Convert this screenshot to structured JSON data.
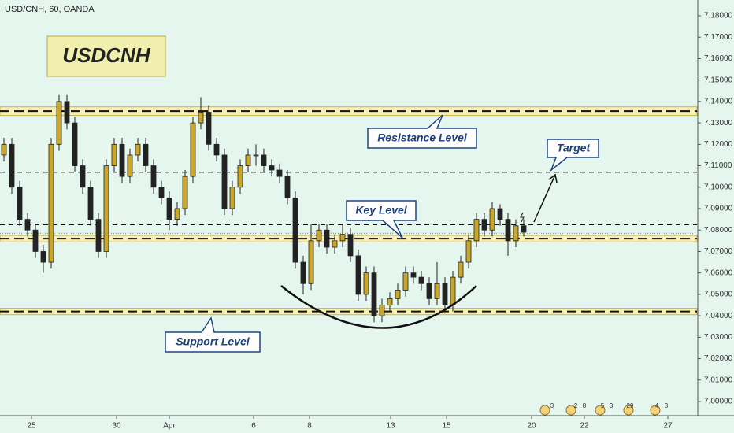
{
  "chart_data": {
    "type": "candlestick",
    "header": "USD/CNH, 60, OANDA",
    "title": "USDCNH",
    "annotations": {
      "resistance": "Resistance Level",
      "target": "Target",
      "key": "Key Level",
      "support": "Support Level"
    },
    "up_color": "#c9a72c",
    "down_color": "#222222",
    "band_color": "#f6f0b8",
    "grid": false,
    "ylim": [
      7.0,
      7.18
    ],
    "yticks": [
      {
        "value": 7.18,
        "label": "7.18000"
      },
      {
        "value": 7.17,
        "label": "7.17000"
      },
      {
        "value": 7.16,
        "label": "7.16000"
      },
      {
        "value": 7.15,
        "label": "7.15000"
      },
      {
        "value": 7.14,
        "label": "7.14000"
      },
      {
        "value": 7.13,
        "label": "7.13000"
      },
      {
        "value": 7.12,
        "label": "7.12000"
      },
      {
        "value": 7.11,
        "label": "7.11000"
      },
      {
        "value": 7.1,
        "label": "7.10000"
      },
      {
        "value": 7.09,
        "label": "7.09000"
      },
      {
        "value": 7.08,
        "label": "7.08000"
      },
      {
        "value": 7.07,
        "label": "7.07000"
      },
      {
        "value": 7.06,
        "label": "7.06000"
      },
      {
        "value": 7.05,
        "label": "7.05000"
      },
      {
        "value": 7.04,
        "label": "7.04000"
      },
      {
        "value": 7.03,
        "label": "7.03000"
      },
      {
        "value": 7.02,
        "label": "7.02000"
      },
      {
        "value": 7.01,
        "label": "7.01000"
      },
      {
        "value": 7.0,
        "label": "7.00000"
      }
    ],
    "xlim": [
      0,
      88.5
    ],
    "xticks": [
      {
        "value": 4.0,
        "label": "25"
      },
      {
        "value": 14.8,
        "label": "30"
      },
      {
        "value": 21.5,
        "label": "Apr"
      },
      {
        "value": 32.2,
        "label": "6"
      },
      {
        "value": 39.3,
        "label": "8"
      },
      {
        "value": 49.6,
        "label": "13"
      },
      {
        "value": 56.7,
        "label": "15"
      },
      {
        "value": 67.5,
        "label": "20"
      },
      {
        "value": 74.2,
        "label": "22"
      },
      {
        "value": 84.8,
        "label": "27"
      }
    ],
    "bands": [
      [
        7.1335,
        7.1375
      ],
      [
        7.0745,
        7.0775
      ],
      [
        7.0405,
        7.0435
      ]
    ],
    "dashed_lines": [
      7.1355,
      7.107,
      7.0825,
      7.076,
      7.042
    ],
    "dotted_line": 7.0785,
    "event_labels": [
      "3",
      "2",
      "8",
      "5",
      "3",
      "29",
      "4",
      "3"
    ],
    "candles": [
      [
        7.115,
        7.123,
        7.112,
        7.12
      ],
      [
        7.12,
        7.123,
        7.097,
        7.1
      ],
      [
        7.1,
        7.103,
        7.082,
        7.085
      ],
      [
        7.085,
        7.088,
        7.077,
        7.08
      ],
      [
        7.08,
        7.083,
        7.067,
        7.07
      ],
      [
        7.07,
        7.073,
        7.06,
        7.065
      ],
      [
        7.065,
        7.123,
        7.062,
        7.12
      ],
      [
        7.12,
        7.143,
        7.117,
        7.14
      ],
      [
        7.14,
        7.143,
        7.127,
        7.13
      ],
      [
        7.13,
        7.133,
        7.107,
        7.11
      ],
      [
        7.11,
        7.113,
        7.097,
        7.1
      ],
      [
        7.1,
        7.103,
        7.082,
        7.085
      ],
      [
        7.085,
        7.088,
        7.067,
        7.07
      ],
      [
        7.07,
        7.113,
        7.067,
        7.11
      ],
      [
        7.11,
        7.123,
        7.107,
        7.12
      ],
      [
        7.12,
        7.123,
        7.102,
        7.105
      ],
      [
        7.105,
        7.118,
        7.102,
        7.115
      ],
      [
        7.115,
        7.123,
        7.112,
        7.12
      ],
      [
        7.12,
        7.123,
        7.107,
        7.11
      ],
      [
        7.11,
        7.113,
        7.097,
        7.1
      ],
      [
        7.1,
        7.103,
        7.092,
        7.095
      ],
      [
        7.095,
        7.098,
        7.08,
        7.085
      ],
      [
        7.085,
        7.093,
        7.082,
        7.09
      ],
      [
        7.09,
        7.108,
        7.087,
        7.105
      ],
      [
        7.105,
        7.133,
        7.102,
        7.13
      ],
      [
        7.13,
        7.142,
        7.127,
        7.135
      ],
      [
        7.135,
        7.138,
        7.117,
        7.12
      ],
      [
        7.12,
        7.123,
        7.112,
        7.115
      ],
      [
        7.115,
        7.118,
        7.087,
        7.09
      ],
      [
        7.09,
        7.103,
        7.087,
        7.1
      ],
      [
        7.1,
        7.113,
        7.097,
        7.11
      ],
      [
        7.11,
        7.118,
        7.107,
        7.115
      ],
      [
        7.115,
        7.12,
        7.11,
        7.115
      ],
      [
        7.115,
        7.118,
        7.107,
        7.11
      ],
      [
        7.11,
        7.113,
        7.105,
        7.108
      ],
      [
        7.108,
        7.111,
        7.102,
        7.105
      ],
      [
        7.105,
        7.108,
        7.092,
        7.095
      ],
      [
        7.095,
        7.098,
        7.062,
        7.065
      ],
      [
        7.065,
        7.068,
        7.05,
        7.055
      ],
      [
        7.055,
        7.083,
        7.052,
        7.075
      ],
      [
        7.075,
        7.083,
        7.072,
        7.08
      ],
      [
        7.08,
        7.083,
        7.069,
        7.072
      ],
      [
        7.072,
        7.078,
        7.069,
        7.075
      ],
      [
        7.075,
        7.083,
        7.072,
        7.078
      ],
      [
        7.078,
        7.081,
        7.065,
        7.068
      ],
      [
        7.068,
        7.071,
        7.047,
        7.05
      ],
      [
        7.05,
        7.063,
        7.047,
        7.06
      ],
      [
        7.06,
        7.063,
        7.037,
        7.04
      ],
      [
        7.04,
        7.048,
        7.037,
        7.045
      ],
      [
        7.045,
        7.051,
        7.042,
        7.048
      ],
      [
        7.048,
        7.055,
        7.045,
        7.052
      ],
      [
        7.052,
        7.063,
        7.049,
        7.06
      ],
      [
        7.06,
        7.063,
        7.055,
        7.058
      ],
      [
        7.058,
        7.061,
        7.052,
        7.055
      ],
      [
        7.055,
        7.058,
        7.045,
        7.048
      ],
      [
        7.048,
        7.065,
        7.045,
        7.055
      ],
      [
        7.055,
        7.058,
        7.042,
        7.045
      ],
      [
        7.045,
        7.061,
        7.042,
        7.058
      ],
      [
        7.058,
        7.068,
        7.055,
        7.065
      ],
      [
        7.065,
        7.078,
        7.062,
        7.075
      ],
      [
        7.075,
        7.088,
        7.072,
        7.085
      ],
      [
        7.085,
        7.088,
        7.077,
        7.08
      ],
      [
        7.08,
        7.093,
        7.077,
        7.09
      ],
      [
        7.09,
        7.092,
        7.082,
        7.085
      ],
      [
        7.085,
        7.088,
        7.068,
        7.075
      ],
      [
        7.075,
        7.085,
        7.072,
        7.082
      ],
      [
        7.082,
        7.085,
        7.077,
        7.079
      ]
    ]
  }
}
